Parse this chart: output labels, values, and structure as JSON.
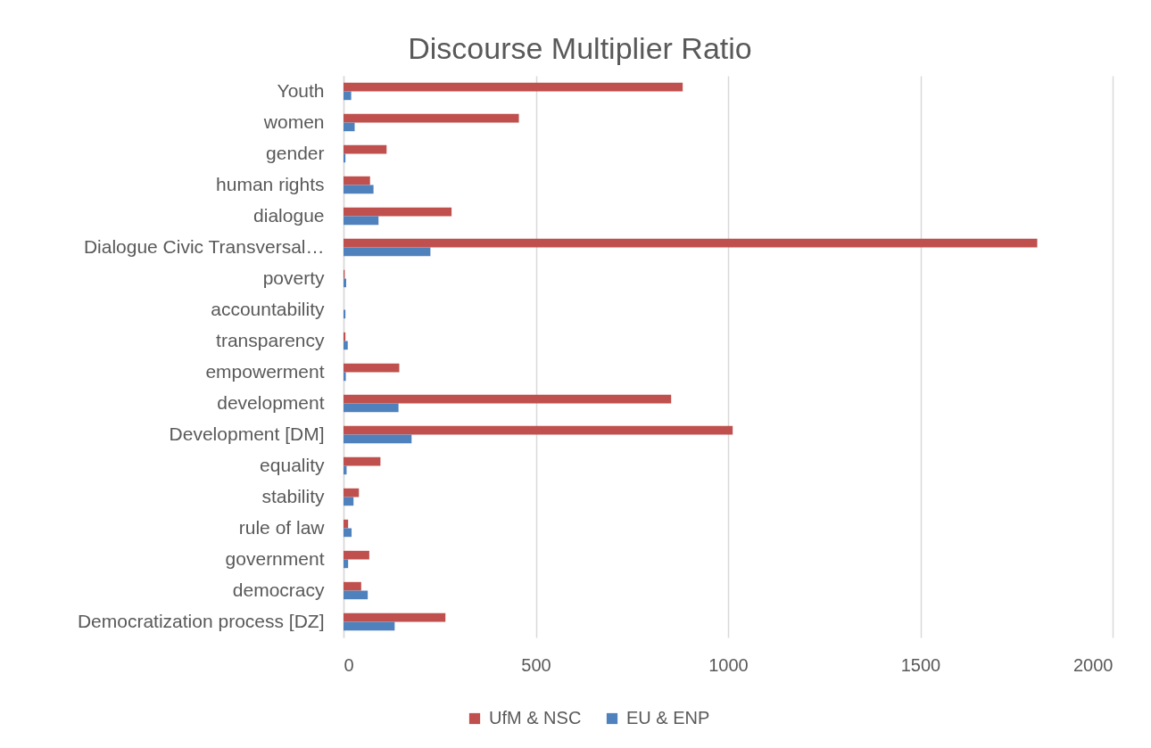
{
  "chart_data": {
    "type": "bar",
    "title": "Discourse Multiplier Ratio",
    "orientation": "horizontal",
    "categories": [
      "Youth",
      "women",
      "gender",
      "human rights",
      "dialogue",
      "Dialogue Civic Transversal…",
      "poverty",
      "accountability",
      "transparency",
      "empowerment",
      "development",
      "Development [DM]",
      "equality",
      "stability",
      "rule of law",
      "government",
      "democracy",
      "Democratization process [DZ]"
    ],
    "series": [
      {
        "name": "UfM & NSC",
        "color": "#c0504d",
        "values": [
          882,
          456,
          112,
          69,
          281,
          1804,
          3,
          null,
          5,
          145,
          852,
          1012,
          96,
          40,
          12,
          67,
          46,
          265
        ]
      },
      {
        "name": "EU & ENP",
        "color": "#4f81bd",
        "values": [
          20,
          29,
          5,
          78,
          91,
          226,
          7,
          5,
          11,
          6,
          143,
          177,
          8,
          26,
          21,
          12,
          63,
          133
        ]
      }
    ],
    "xlim": [
      0,
      2000
    ],
    "xticks": [
      0,
      500,
      1000,
      1500,
      2000
    ],
    "grid": "x",
    "legend": "bottom"
  }
}
